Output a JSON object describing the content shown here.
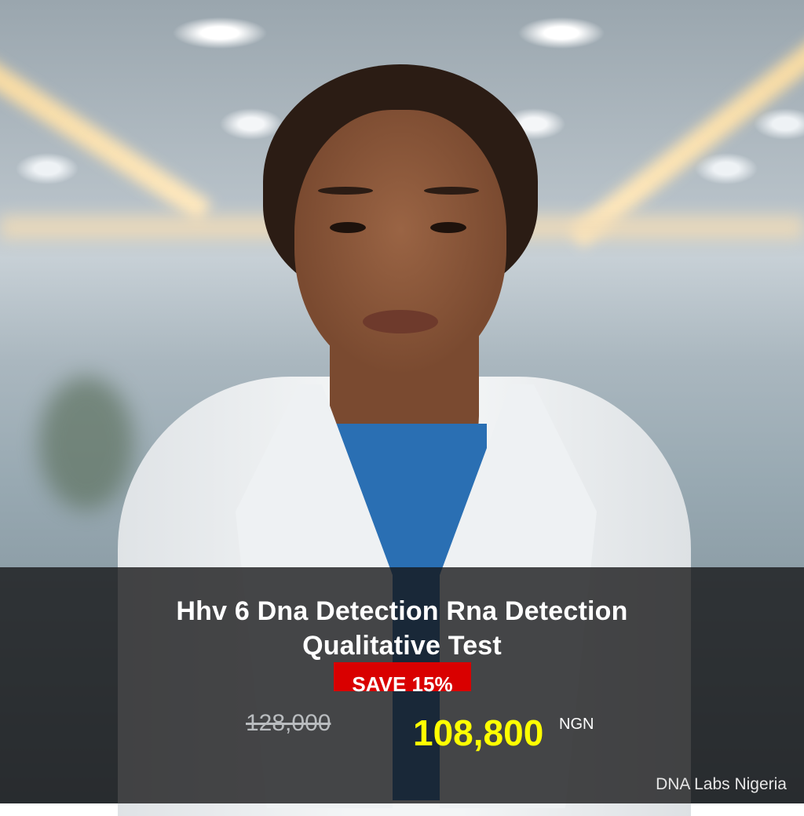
{
  "product": {
    "title_line1": "Hhv 6 Dna Detection Rna Detection",
    "title_line2": "Qualitative Test",
    "discount_badge": "SAVE 15%",
    "original_price": "128,000",
    "sale_price": "108,800",
    "currency": "NGN"
  },
  "brand": {
    "name": "DNA Labs Nigeria"
  },
  "colors": {
    "badge": "#d90000",
    "sale_price": "#ffff00",
    "overlay": "#141416"
  }
}
